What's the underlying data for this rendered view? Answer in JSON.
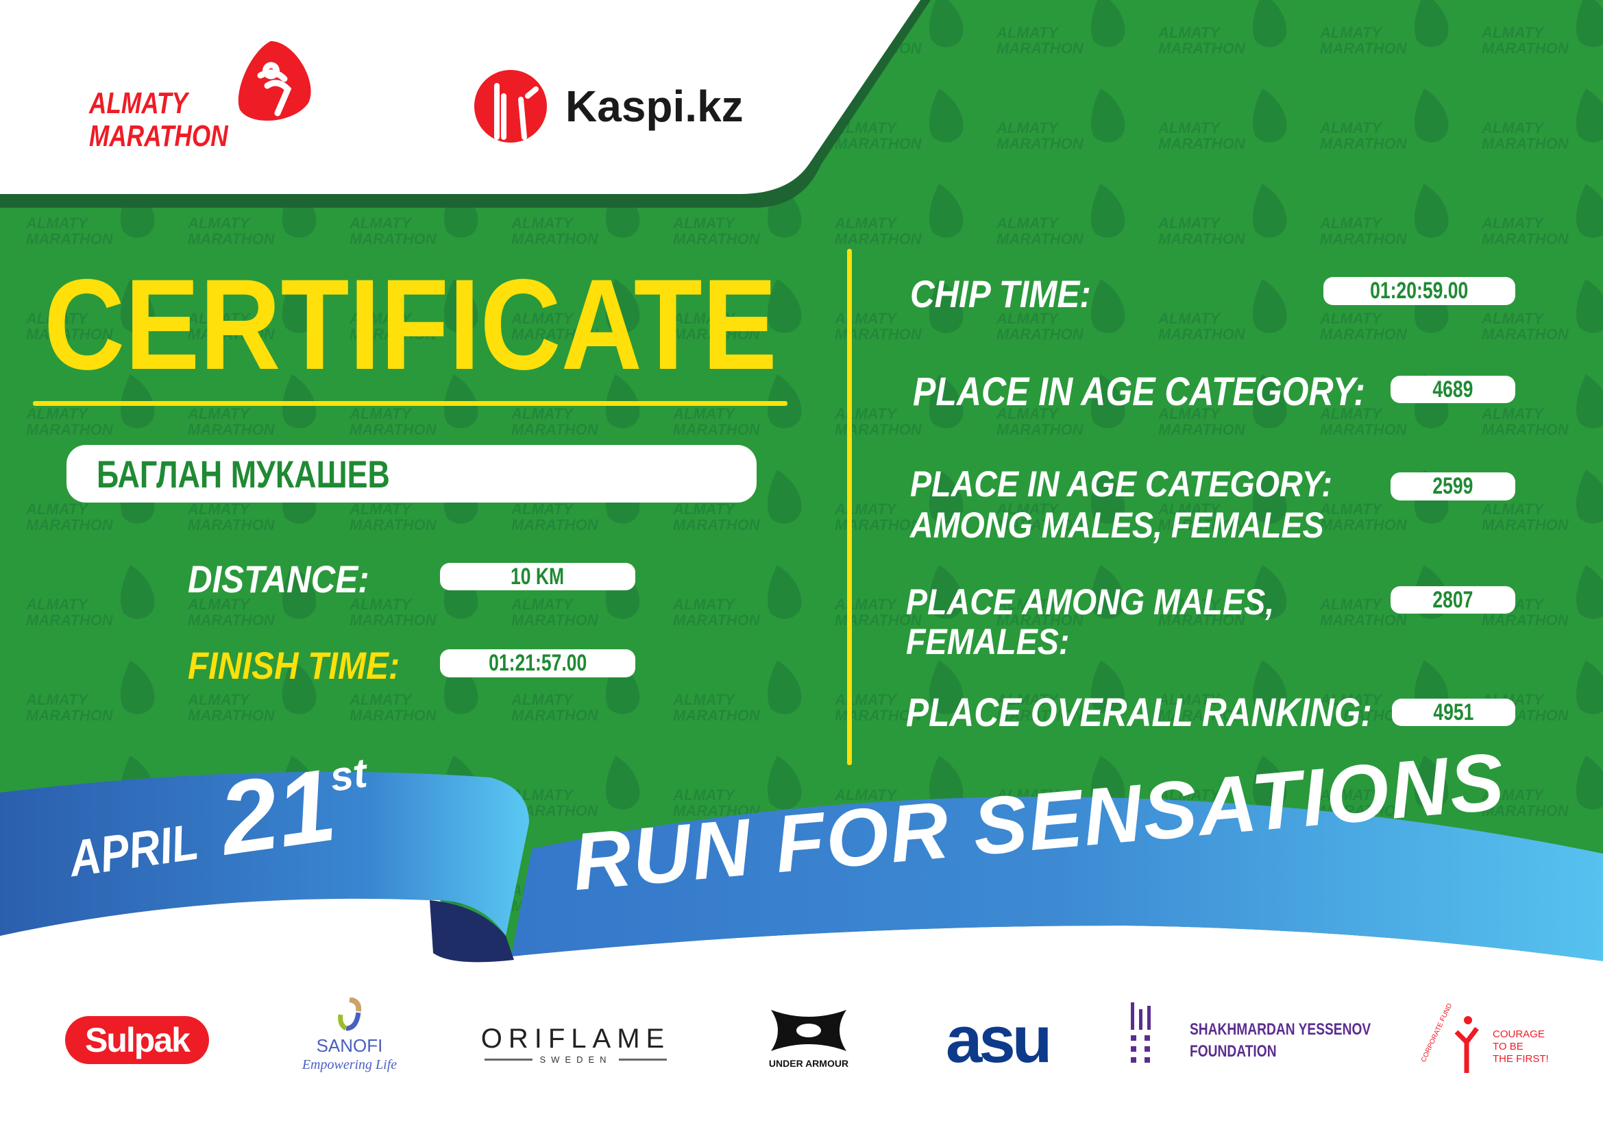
{
  "header": {
    "event_logo_line1": "ALMATY",
    "event_logo_line2": "MARATHON",
    "sponsor_logo": "Kaspi.kz"
  },
  "watermark": {
    "line1": "ALMATY",
    "line2": "MARATHON"
  },
  "certificate": {
    "title": "CERTIFICATE",
    "runner_name": "БАГЛАН МУКАШЕВ",
    "distance_label": "DISTANCE:",
    "distance_value": "10 KM",
    "finish_time_label": "FINISH TIME:",
    "finish_time_value": "01:21:57.00"
  },
  "results": {
    "chip_time_label": "CHIP TIME:",
    "chip_time_value": "01:20:59.00",
    "age_category_label": "PLACE IN AGE CATEGORY:",
    "age_category_value": "4689",
    "age_gender_label_line1": "PLACE IN AGE CATEGORY:",
    "age_gender_label_line2": "AMONG MALES, FEMALES",
    "age_gender_value": "2599",
    "gender_label_line1": "PLACE AMONG MALES,",
    "gender_label_line2": "FEMALES:",
    "gender_value": "2807",
    "overall_label": "PLACE OVERALL RANKING:",
    "overall_value": "4951"
  },
  "ribbon": {
    "month": "APRIL",
    "day": "21",
    "suffix": "st",
    "slogan": "RUN FOR SENSATIONS"
  },
  "partners": {
    "sulpak": "Sulpak",
    "sanofi": "SANOFI",
    "sanofi_tagline": "Empowering Life",
    "oriflame": "ORIFLAME",
    "oriflame_sub": "SWEDEN",
    "under_armour": "UNDER ARMOUR",
    "asu": "asu",
    "yessenov_line1": "SHAKHMARDAN YESSENOV",
    "yessenov_line2": "FOUNDATION",
    "courage_arc": "CORPORATE FUND",
    "courage_line1": "COURAGE",
    "courage_line2": "TO BE",
    "courage_line3": "THE FIRST!"
  },
  "colors": {
    "green": "#2A993B",
    "dark_green": "#1E6433",
    "yellow": "#FFE00A",
    "red": "#EE1C25",
    "ribbon_blue": "#3A85D0",
    "ribbon_light": "#55C3F0"
  }
}
